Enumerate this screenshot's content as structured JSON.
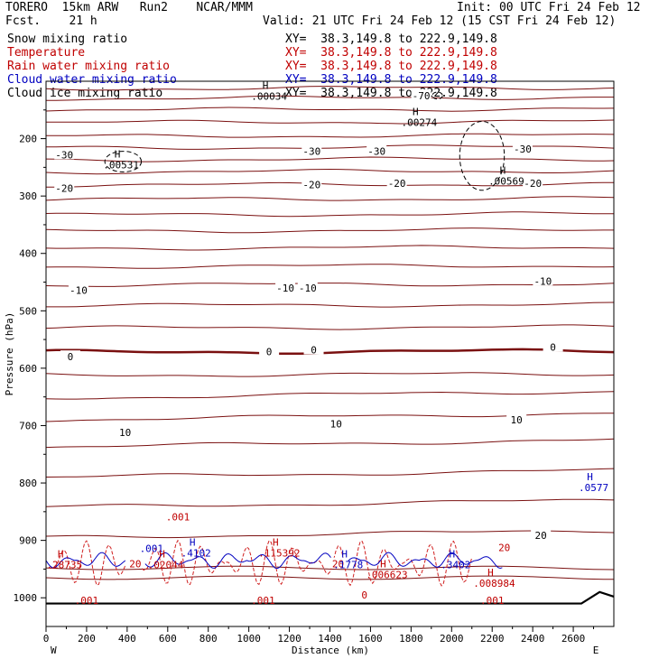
{
  "header": {
    "model": "TORERO  15km ARW   Run2    NCAR/MMM",
    "init": "Init: 00 UTC Fri 24 Feb 12",
    "fcst": "Fcst.    21 h",
    "valid": "Valid: 21 UTC Fri 24 Feb 12 (15 CST Fri 24 Feb 12)"
  },
  "fields": [
    {
      "name": "Snow mixing ratio",
      "color": "#000000",
      "xy": "XY=  38.3,149.8 to 222.9,149.8",
      "xy_color": "#000000"
    },
    {
      "name": "Temperature",
      "color": "#c00000",
      "xy": "XY=  38.3,149.8 to 222.9,149.8",
      "xy_color": "#c00000"
    },
    {
      "name": "Rain water mixing ratio",
      "color": "#c00000",
      "xy": "XY=  38.3,149.8 to 222.9,149.8",
      "xy_color": "#c00000"
    },
    {
      "name": "Cloud water mixing ratio",
      "color": "#0000c0",
      "xy": "XY=  38.3,149.8 to 222.9,149.8",
      "xy_color": "#0000c0"
    },
    {
      "name": "Cloud ice mixing ratio",
      "color": "#000000",
      "xy": "XY=  38.3,149.8 to 222.9,149.8",
      "xy_color": "#000000"
    }
  ],
  "chart_data": {
    "type": "contour cross-section",
    "xlabel": "Distance (km)",
    "ylabel": "Pressure (hPa)",
    "xlim": [
      0,
      2800
    ],
    "ylim": [
      1050,
      100
    ],
    "x_ticks": [
      0,
      200,
      400,
      600,
      800,
      1000,
      1200,
      1400,
      1600,
      1800,
      2000,
      2200,
      2400,
      2600
    ],
    "y_ticks": [
      200,
      300,
      400,
      500,
      600,
      700,
      800,
      900,
      1000
    ],
    "x_end_labels": {
      "left": "W",
      "right": "E"
    },
    "temperature_contour_labels": [
      {
        "text": "-70",
        "x": 1850,
        "p": 125
      },
      {
        "text": "-30",
        "x": 90,
        "p": 228
      },
      {
        "text": "-30",
        "x": 1310,
        "p": 222
      },
      {
        "text": "-30",
        "x": 1630,
        "p": 222
      },
      {
        "text": "-30",
        "x": 2350,
        "p": 218
      },
      {
        "text": "-20",
        "x": 90,
        "p": 286
      },
      {
        "text": "-20",
        "x": 1310,
        "p": 280
      },
      {
        "text": "-20",
        "x": 1730,
        "p": 278
      },
      {
        "text": "-20",
        "x": 2400,
        "p": 278
      },
      {
        "text": "-10",
        "x": 160,
        "p": 464
      },
      {
        "text": "-10",
        "x": 1180,
        "p": 460
      },
      {
        "text": "-10",
        "x": 1290,
        "p": 460
      },
      {
        "text": "-10",
        "x": 2450,
        "p": 448
      },
      {
        "text": "0",
        "x": 120,
        "p": 580
      },
      {
        "text": "0",
        "x": 1100,
        "p": 571
      },
      {
        "text": "0",
        "x": 1320,
        "p": 568
      },
      {
        "text": "0",
        "x": 2500,
        "p": 563
      },
      {
        "text": "10",
        "x": 390,
        "p": 712
      },
      {
        "text": "10",
        "x": 1430,
        "p": 697
      },
      {
        "text": "10",
        "x": 2320,
        "p": 690
      },
      {
        "text": "20",
        "x": 440,
        "p": 941
      },
      {
        "text": "20",
        "x": 1440,
        "p": 941
      },
      {
        "text": "20",
        "x": 2260,
        "p": 912
      },
      {
        "text": "20",
        "x": 2440,
        "p": 891
      },
      {
        "text": "0",
        "x": 1570,
        "p": 995
      }
    ],
    "maxima_labels": [
      {
        "text": ".00034",
        "x": 1100,
        "p": 124,
        "h": true,
        "color": "#000000"
      },
      {
        "text": ".00274",
        "x": 1840,
        "p": 170,
        "h": true,
        "color": "#000000"
      },
      {
        "text": ".00531",
        "x": 370,
        "p": 244,
        "h": true,
        "color": "#000000"
      },
      {
        "text": ".00569",
        "x": 2270,
        "p": 272,
        "h": true,
        "color": "#000000"
      },
      {
        "text": ".0577",
        "x": 2700,
        "p": 806,
        "h": true,
        "color": "#0000c0"
      },
      {
        "text": ".001",
        "x": 650,
        "p": 857,
        "h": false,
        "color": "#c00000"
      },
      {
        "text": ".001",
        "x": 520,
        "p": 912,
        "h": false,
        "color": "#0000c0"
      },
      {
        "text": ".4102",
        "x": 740,
        "p": 920,
        "h": true,
        "color": "#0000c0"
      },
      {
        "text": ".115392",
        "x": 1150,
        "p": 920,
        "h": true,
        "color": "#c00000"
      },
      {
        "text": ".02044",
        "x": 590,
        "p": 941,
        "h": true,
        "color": "#c00000"
      },
      {
        "text": ".28735",
        "x": 90,
        "p": 941,
        "h": true,
        "color": "#c00000"
      },
      {
        "text": ".1778",
        "x": 1490,
        "p": 941,
        "h": true,
        "color": "#0000c0"
      },
      {
        "text": ".006623",
        "x": 1680,
        "p": 958,
        "h": true,
        "color": "#c00000"
      },
      {
        "text": ".3402",
        "x": 2020,
        "p": 941,
        "h": true,
        "color": "#0000c0"
      },
      {
        "text": ".008984",
        "x": 2210,
        "p": 973,
        "h": true,
        "color": "#c00000"
      },
      {
        "text": ".001",
        "x": 200,
        "p": 1003,
        "h": false,
        "color": "#c00000"
      },
      {
        "text": ".001",
        "x": 1070,
        "p": 1003,
        "h": false,
        "color": "#c00000"
      },
      {
        "text": ".001",
        "x": 2200,
        "p": 1003,
        "h": false,
        "color": "#c00000"
      }
    ]
  }
}
